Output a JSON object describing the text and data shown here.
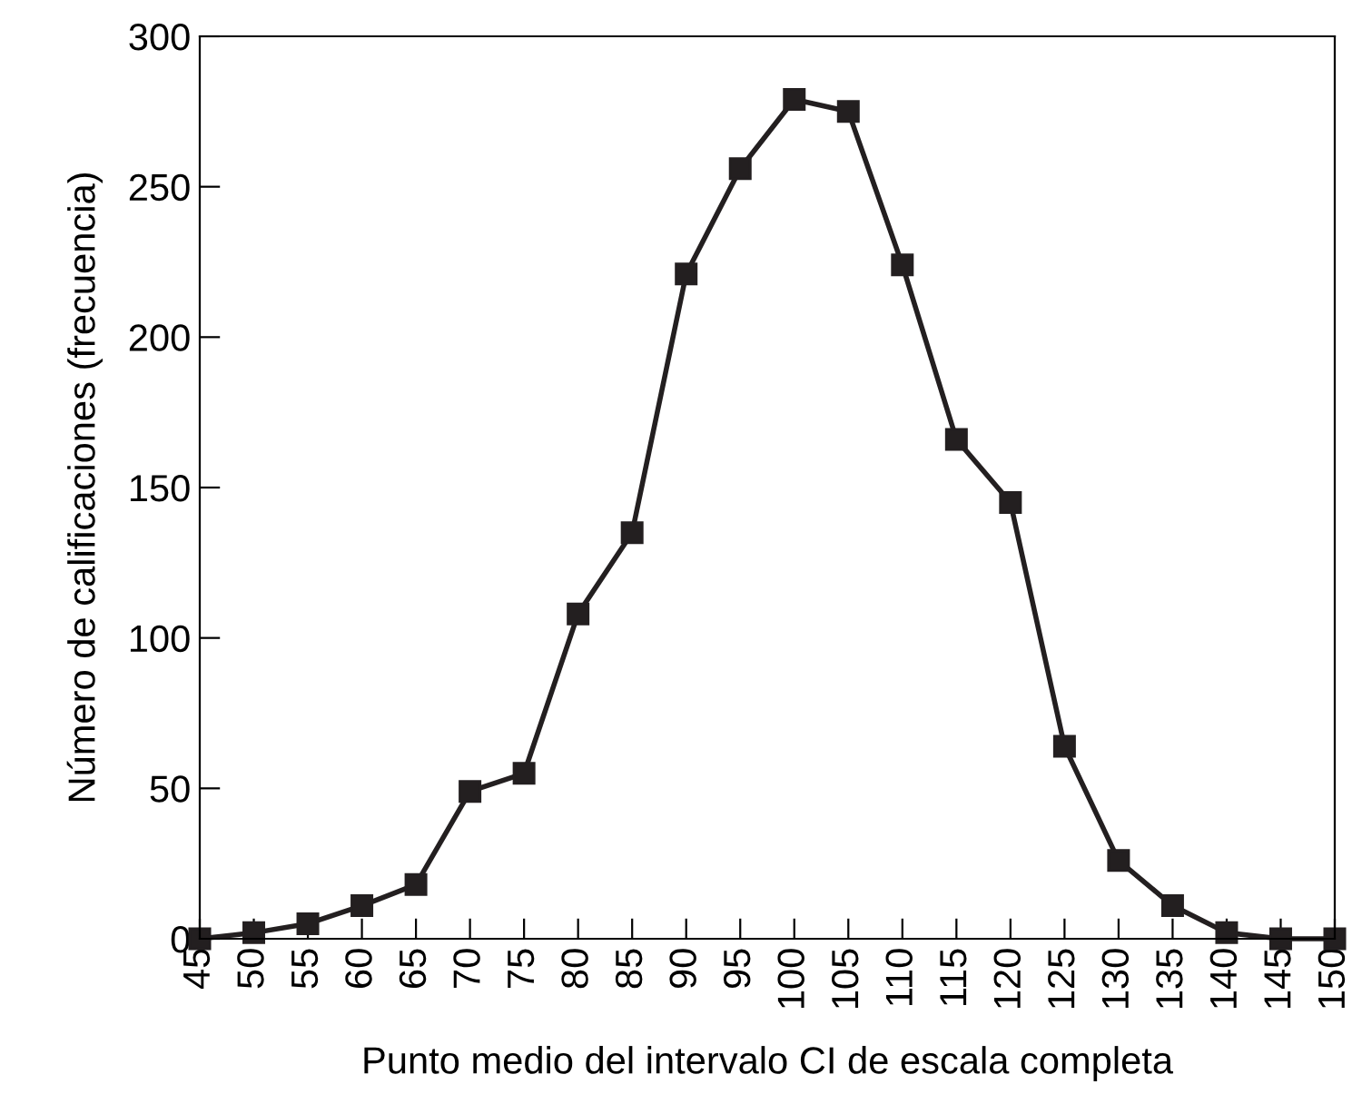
{
  "chart_data": {
    "type": "line",
    "xlabel": "Punto medio del intervalo CI de escala completa",
    "ylabel": "Número de calificaciones (frecuencia)",
    "x": [
      45,
      50,
      55,
      60,
      65,
      70,
      75,
      80,
      85,
      90,
      95,
      100,
      105,
      110,
      115,
      120,
      125,
      130,
      135,
      140,
      145,
      150
    ],
    "series": [
      {
        "color": "#231f20",
        "values": [
          0,
          2,
          5,
          11,
          18,
          49,
          55,
          108,
          135,
          221,
          256,
          279,
          275,
          224,
          166,
          145,
          64,
          26,
          11,
          2,
          0,
          0
        ]
      }
    ],
    "xlim": [
      45,
      150
    ],
    "xticks": [
      45,
      50,
      55,
      60,
      65,
      70,
      75,
      80,
      85,
      90,
      95,
      100,
      105,
      110,
      115,
      120,
      125,
      130,
      135,
      140,
      145,
      150
    ],
    "ylim": [
      0,
      300
    ],
    "yticks": [
      0,
      50,
      100,
      150,
      200,
      250,
      300
    ],
    "marker": "square",
    "line_style": "solid",
    "grid": false
  }
}
